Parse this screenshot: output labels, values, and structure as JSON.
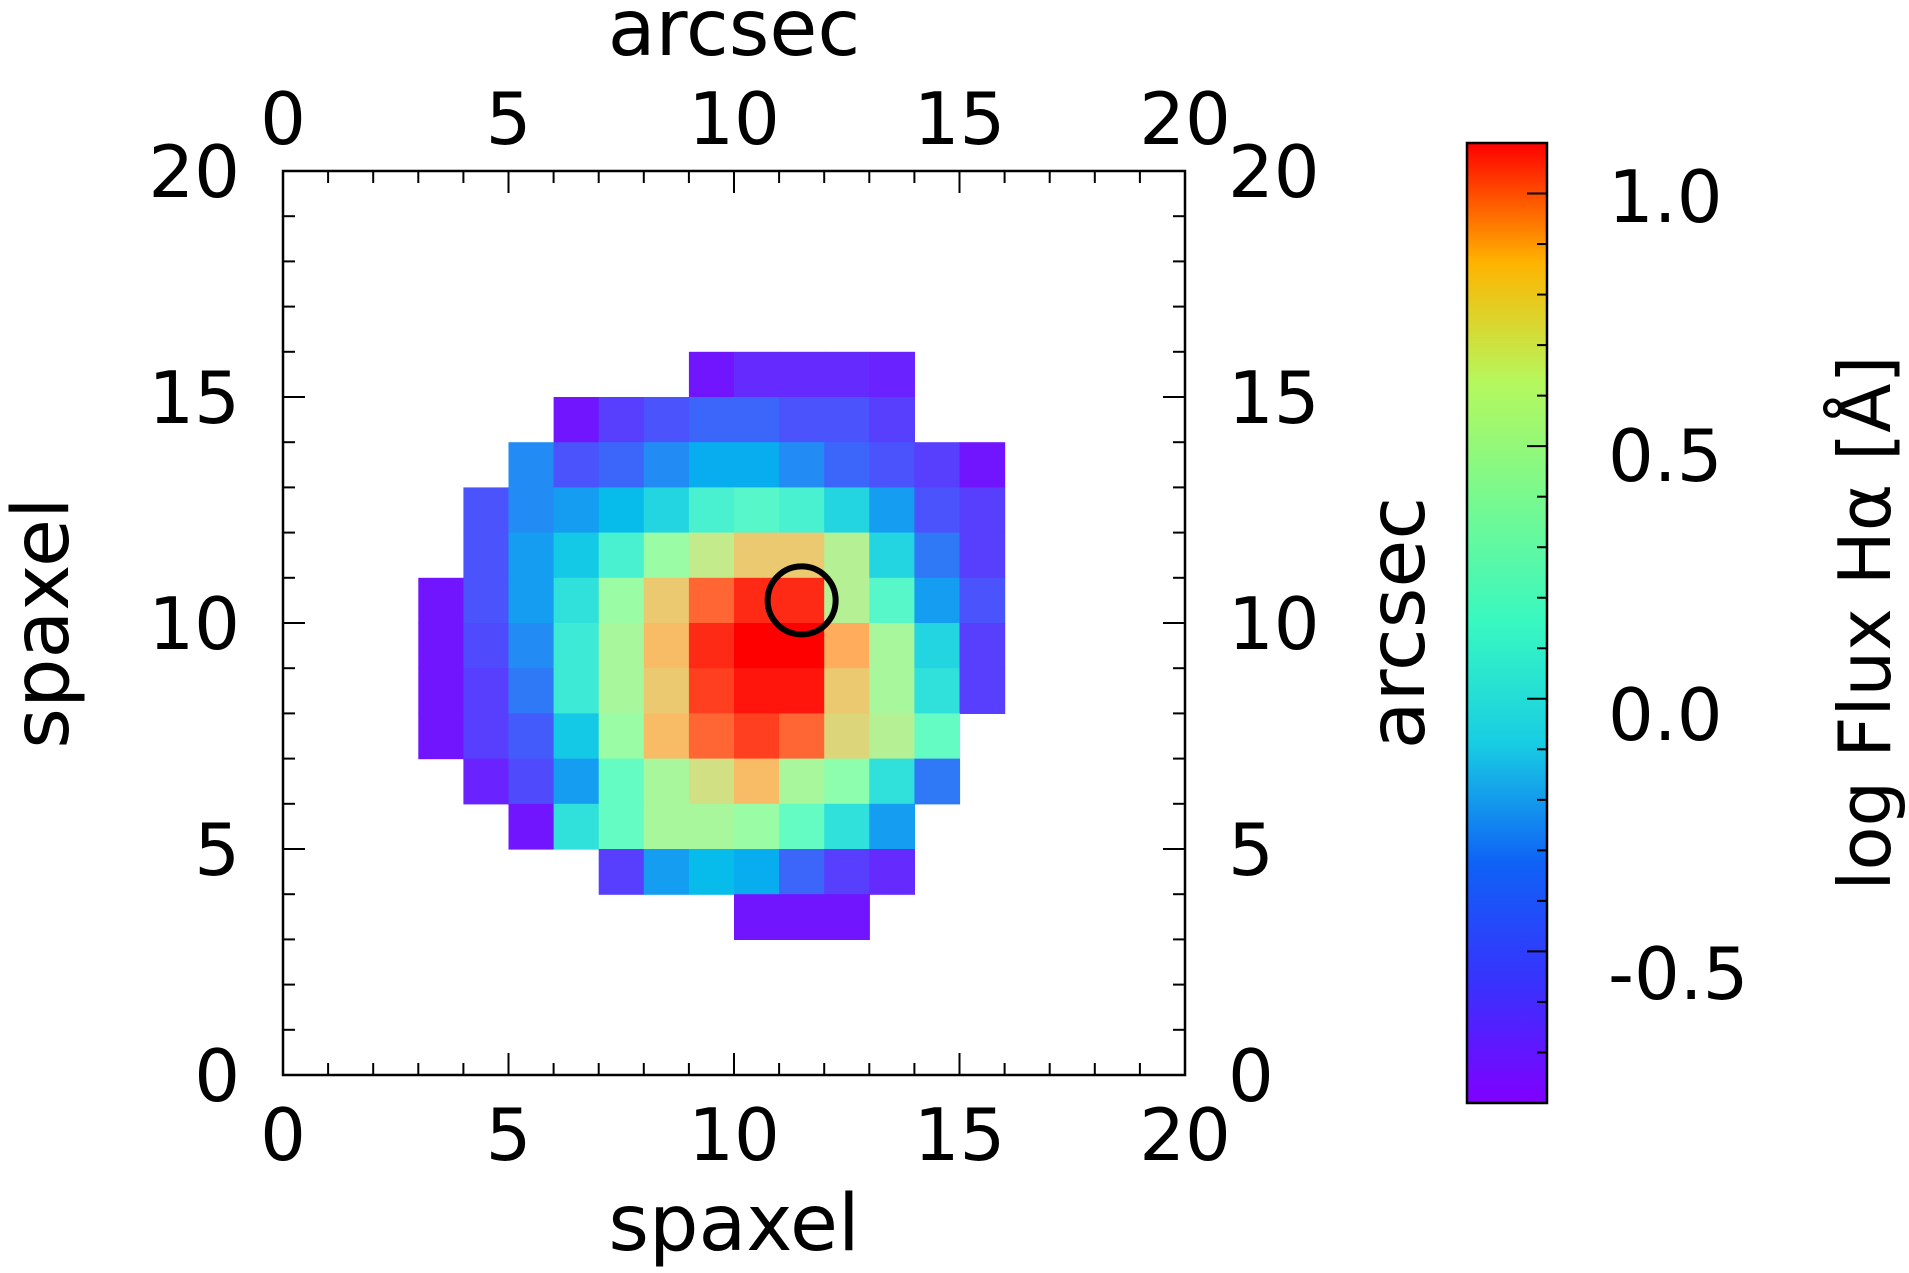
{
  "chart_data": {
    "type": "heatmap",
    "title": "",
    "xlabel": "spaxel",
    "ylabel": "spaxel",
    "top_label": "arcsec",
    "right_label": "arcsec",
    "xlim": [
      0,
      20
    ],
    "ylim": [
      0,
      20
    ],
    "ticks": [
      "0",
      "5",
      "10",
      "15",
      "20"
    ],
    "colorbar": {
      "label": "log Flux Hα [Å]",
      "range": [
        -0.8,
        1.1
      ],
      "ticks": [
        "1.0",
        "0.5",
        "0.0",
        "-0.5"
      ],
      "tick_values": [
        1.0,
        0.5,
        0.0,
        -0.5
      ],
      "colormap": "rainbow"
    },
    "marker": {
      "type": "circle",
      "x": 11.5,
      "y": 10.5
    },
    "cells": [
      [
        9,
        15,
        -0.75
      ],
      [
        10,
        15,
        -0.7
      ],
      [
        11,
        15,
        -0.7
      ],
      [
        12,
        15,
        -0.7
      ],
      [
        13,
        15,
        -0.72
      ],
      [
        6,
        14,
        -0.75
      ],
      [
        7,
        14,
        -0.65
      ],
      [
        8,
        14,
        -0.6
      ],
      [
        9,
        14,
        -0.55
      ],
      [
        10,
        14,
        -0.55
      ],
      [
        11,
        14,
        -0.6
      ],
      [
        12,
        14,
        -0.6
      ],
      [
        13,
        14,
        -0.65
      ],
      [
        5,
        13,
        -0.45
      ],
      [
        6,
        13,
        -0.6
      ],
      [
        7,
        13,
        -0.55
      ],
      [
        8,
        13,
        -0.45
      ],
      [
        9,
        13,
        -0.35
      ],
      [
        10,
        13,
        -0.35
      ],
      [
        11,
        13,
        -0.45
      ],
      [
        12,
        13,
        -0.55
      ],
      [
        13,
        13,
        -0.6
      ],
      [
        14,
        13,
        -0.65
      ],
      [
        15,
        13,
        -0.75
      ],
      [
        4,
        12,
        -0.6
      ],
      [
        5,
        12,
        -0.45
      ],
      [
        6,
        12,
        -0.4
      ],
      [
        7,
        12,
        -0.3
      ],
      [
        8,
        12,
        -0.2
      ],
      [
        9,
        12,
        -0.05
      ],
      [
        10,
        12,
        0.0
      ],
      [
        11,
        12,
        -0.05
      ],
      [
        12,
        12,
        -0.2
      ],
      [
        13,
        12,
        -0.4
      ],
      [
        14,
        12,
        -0.6
      ],
      [
        15,
        12,
        -0.65
      ],
      [
        4,
        11,
        -0.6
      ],
      [
        5,
        11,
        -0.4
      ],
      [
        6,
        11,
        -0.25
      ],
      [
        7,
        11,
        -0.05
      ],
      [
        8,
        11,
        0.25
      ],
      [
        9,
        11,
        0.4
      ],
      [
        10,
        11,
        0.55
      ],
      [
        11,
        11,
        0.55
      ],
      [
        12,
        11,
        0.35
      ],
      [
        13,
        11,
        -0.2
      ],
      [
        14,
        11,
        -0.5
      ],
      [
        15,
        11,
        -0.65
      ],
      [
        3,
        10,
        -0.75
      ],
      [
        4,
        10,
        -0.6
      ],
      [
        5,
        10,
        -0.4
      ],
      [
        6,
        10,
        -0.15
      ],
      [
        7,
        10,
        0.25
      ],
      [
        8,
        10,
        0.55
      ],
      [
        9,
        10,
        0.85
      ],
      [
        10,
        10,
        1.0
      ],
      [
        11,
        10,
        1.0
      ],
      [
        12,
        10,
        0.35
      ],
      [
        13,
        10,
        0.0
      ],
      [
        14,
        10,
        -0.4
      ],
      [
        15,
        10,
        -0.6
      ],
      [
        3,
        9,
        -0.75
      ],
      [
        4,
        9,
        -0.62
      ],
      [
        5,
        9,
        -0.45
      ],
      [
        6,
        9,
        -0.1
      ],
      [
        7,
        9,
        0.3
      ],
      [
        8,
        9,
        0.6
      ],
      [
        9,
        9,
        1.0
      ],
      [
        10,
        9,
        1.1
      ],
      [
        11,
        9,
        1.1
      ],
      [
        12,
        9,
        0.65
      ],
      [
        13,
        9,
        0.3
      ],
      [
        14,
        9,
        -0.2
      ],
      [
        15,
        9,
        -0.65
      ],
      [
        3,
        8,
        -0.75
      ],
      [
        4,
        8,
        -0.65
      ],
      [
        5,
        8,
        -0.5
      ],
      [
        6,
        8,
        -0.1
      ],
      [
        7,
        8,
        0.3
      ],
      [
        8,
        8,
        0.55
      ],
      [
        9,
        8,
        0.95
      ],
      [
        10,
        8,
        1.05
      ],
      [
        11,
        8,
        1.05
      ],
      [
        12,
        8,
        0.55
      ],
      [
        13,
        8,
        0.3
      ],
      [
        14,
        8,
        -0.15
      ],
      [
        15,
        8,
        -0.65
      ],
      [
        3,
        7,
        -0.75
      ],
      [
        4,
        7,
        -0.65
      ],
      [
        5,
        7,
        -0.58
      ],
      [
        6,
        7,
        -0.25
      ],
      [
        7,
        7,
        0.25
      ],
      [
        8,
        7,
        0.6
      ],
      [
        9,
        7,
        0.85
      ],
      [
        10,
        7,
        0.95
      ],
      [
        11,
        7,
        0.85
      ],
      [
        12,
        7,
        0.5
      ],
      [
        13,
        7,
        0.35
      ],
      [
        14,
        7,
        0.05
      ],
      [
        4,
        6,
        -0.72
      ],
      [
        5,
        6,
        -0.62
      ],
      [
        6,
        6,
        -0.4
      ],
      [
        7,
        6,
        0.05
      ],
      [
        8,
        6,
        0.3
      ],
      [
        9,
        6,
        0.45
      ],
      [
        10,
        6,
        0.6
      ],
      [
        11,
        6,
        0.3
      ],
      [
        12,
        6,
        0.2
      ],
      [
        13,
        6,
        -0.15
      ],
      [
        14,
        6,
        -0.5
      ],
      [
        5,
        5,
        -0.75
      ],
      [
        6,
        5,
        -0.15
      ],
      [
        7,
        5,
        0.05
      ],
      [
        8,
        5,
        0.3
      ],
      [
        9,
        5,
        0.3
      ],
      [
        10,
        5,
        0.25
      ],
      [
        11,
        5,
        0.05
      ],
      [
        12,
        5,
        -0.15
      ],
      [
        13,
        5,
        -0.4
      ],
      [
        7,
        4,
        -0.65
      ],
      [
        8,
        4,
        -0.4
      ],
      [
        9,
        4,
        -0.3
      ],
      [
        10,
        4,
        -0.35
      ],
      [
        11,
        4,
        -0.55
      ],
      [
        12,
        4,
        -0.65
      ],
      [
        13,
        4,
        -0.7
      ],
      [
        10,
        3,
        -0.75
      ],
      [
        11,
        3,
        -0.75
      ],
      [
        12,
        3,
        -0.75
      ]
    ]
  }
}
